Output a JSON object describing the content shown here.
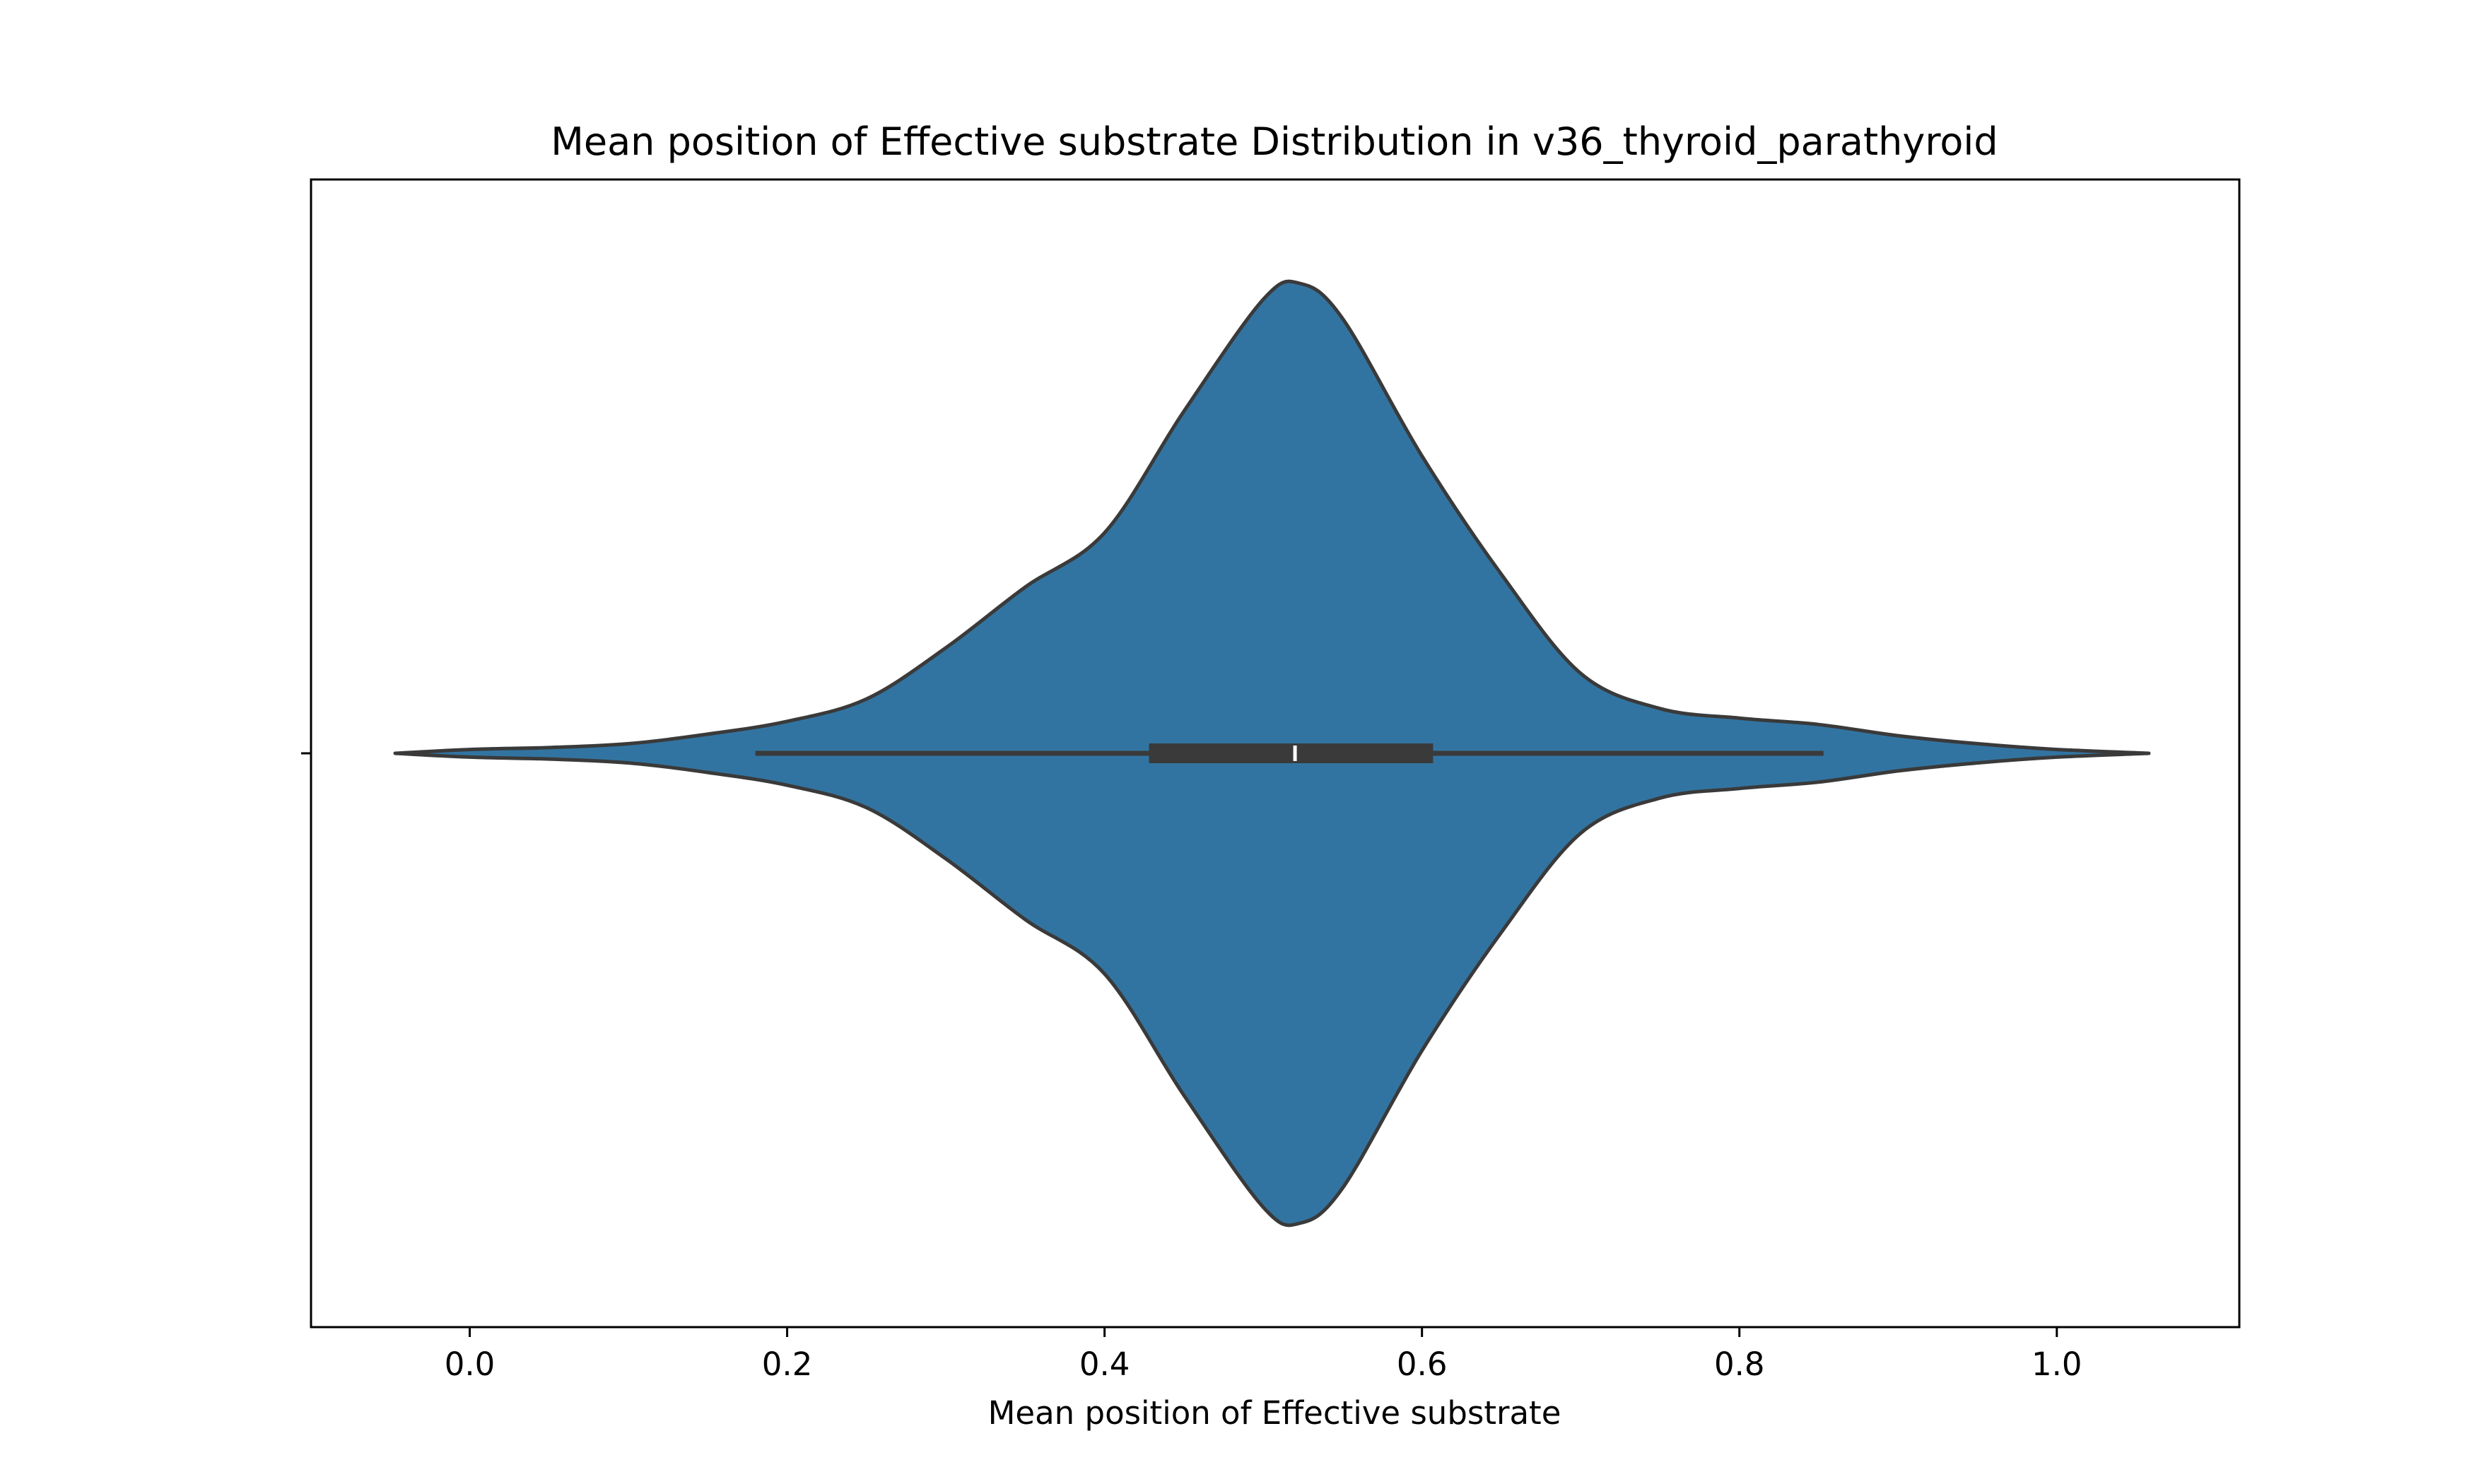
{
  "chart_data": {
    "type": "violin",
    "title": "Mean position of Effective substrate Distribution in v36_thyroid_parathyroid",
    "xlabel": "Mean position of Effective substrate",
    "ylabel": "",
    "xlim": [
      -0.1,
      1.115
    ],
    "xticks": [
      0.0,
      0.2,
      0.4,
      0.6,
      0.8,
      1.0
    ],
    "xtick_labels": [
      "0.0",
      "0.2",
      "0.4",
      "0.6",
      "0.8",
      "1.0"
    ],
    "grid": false,
    "colors": {
      "body": "#3274a1",
      "edge": "#3a3a3a",
      "box": "#3a3a3a",
      "median": "#ffffff"
    },
    "density": {
      "x": [
        -0.047,
        0.0,
        0.05,
        0.1,
        0.15,
        0.2,
        0.25,
        0.3,
        0.35,
        0.4,
        0.45,
        0.5,
        0.523,
        0.55,
        0.6,
        0.65,
        0.7,
        0.75,
        0.8,
        0.85,
        0.9,
        0.95,
        1.0,
        1.058
      ],
      "width": [
        0.0,
        0.012,
        0.018,
        0.03,
        0.06,
        0.1,
        0.17,
        0.33,
        0.52,
        0.69,
        1.07,
        1.42,
        1.47,
        1.36,
        0.93,
        0.56,
        0.25,
        0.14,
        0.11,
        0.09,
        0.055,
        0.03,
        0.012,
        0.0
      ]
    },
    "whiskers": [
      0.18,
      0.853
    ],
    "quartiles": [
      0.428,
      0.607
    ],
    "median": 0.52
  }
}
